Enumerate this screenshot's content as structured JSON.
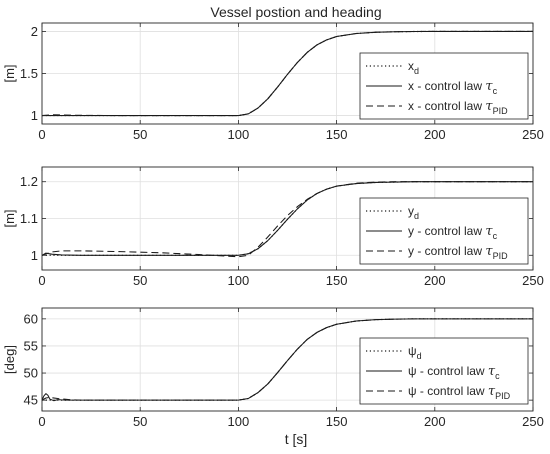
{
  "figure": {
    "title": "Vessel postion and heading",
    "xlabel": "t [s]"
  },
  "chart_data": [
    {
      "type": "line",
      "ylabel": "[m]",
      "xlim": [
        0,
        250
      ],
      "ylim": [
        0.9,
        2.1
      ],
      "xticks": [
        0,
        50,
        100,
        150,
        200,
        250
      ],
      "xtick_labels": [
        "0",
        "50",
        "100",
        "150",
        "200",
        "250"
      ],
      "yticks": [
        1,
        1.5,
        2
      ],
      "ytick_labels": [
        "1",
        "1.5",
        "2"
      ],
      "grid": true,
      "legend_position": "right",
      "series": [
        {
          "base": "x",
          "sub": "d",
          "suffix": "",
          "style": "dotted",
          "x": [
            0,
            100,
            105,
            110,
            115,
            120,
            125,
            130,
            135,
            140,
            145,
            150,
            160,
            170,
            180,
            190,
            200,
            225,
            250
          ],
          "y": [
            1.0,
            1.0,
            1.02,
            1.09,
            1.2,
            1.34,
            1.49,
            1.63,
            1.75,
            1.84,
            1.9,
            1.94,
            1.975,
            1.99,
            1.996,
            1.999,
            2.0,
            2.0,
            2.0
          ]
        },
        {
          "base": "x - control law ",
          "sub": "c",
          "suffix": "",
          "style": "solid",
          "x": [
            0,
            100,
            105,
            110,
            115,
            120,
            125,
            130,
            135,
            140,
            145,
            150,
            160,
            170,
            180,
            190,
            200,
            225,
            250
          ],
          "y": [
            1.0,
            1.0,
            1.02,
            1.09,
            1.2,
            1.34,
            1.49,
            1.63,
            1.75,
            1.84,
            1.9,
            1.94,
            1.975,
            1.99,
            1.996,
            1.999,
            2.0,
            2.0,
            2.0
          ]
        },
        {
          "base": "x - control law ",
          "sub": "PID",
          "suffix": "",
          "style": "dashed",
          "x": [
            0,
            5,
            10,
            20,
            40,
            60,
            80,
            100,
            105,
            110,
            115,
            120,
            125,
            130,
            135,
            140,
            145,
            150,
            160,
            170,
            180,
            190,
            200,
            225,
            250
          ],
          "y": [
            1.0,
            1.01,
            1.007,
            1.003,
            1.0,
            1.0,
            1.0,
            1.0,
            1.02,
            1.09,
            1.2,
            1.34,
            1.49,
            1.63,
            1.75,
            1.84,
            1.9,
            1.94,
            1.975,
            1.99,
            1.996,
            1.999,
            2.0,
            2.0,
            2.0
          ]
        }
      ]
    },
    {
      "type": "line",
      "ylabel": "[m]",
      "xlim": [
        0,
        250
      ],
      "ylim": [
        0.96,
        1.24
      ],
      "xticks": [
        0,
        50,
        100,
        150,
        200,
        250
      ],
      "xtick_labels": [
        "0",
        "50",
        "100",
        "150",
        "200",
        "250"
      ],
      "yticks": [
        1,
        1.1,
        1.2
      ],
      "ytick_labels": [
        "1",
        "1.1",
        "1.2"
      ],
      "grid": true,
      "legend_position": "right",
      "series": [
        {
          "base": "y",
          "sub": "d",
          "suffix": "",
          "style": "dotted",
          "x": [
            0,
            100,
            105,
            110,
            115,
            120,
            125,
            130,
            135,
            140,
            145,
            150,
            160,
            170,
            180,
            190,
            200,
            225,
            250
          ],
          "y": [
            1.0,
            1.0,
            1.004,
            1.018,
            1.04,
            1.068,
            1.098,
            1.126,
            1.15,
            1.168,
            1.18,
            1.188,
            1.195,
            1.198,
            1.199,
            1.2,
            1.2,
            1.2,
            1.2
          ]
        },
        {
          "base": "y - control law ",
          "sub": "c",
          "suffix": "",
          "style": "solid",
          "x": [
            0,
            2,
            5,
            10,
            20,
            60,
            100,
            105,
            110,
            115,
            120,
            125,
            130,
            135,
            140,
            145,
            150,
            160,
            170,
            180,
            190,
            200,
            225,
            250
          ],
          "y": [
            1.0,
            1.006,
            1.003,
            1.001,
            1.0,
            1.0,
            1.0,
            1.004,
            1.018,
            1.04,
            1.068,
            1.098,
            1.126,
            1.15,
            1.168,
            1.18,
            1.188,
            1.195,
            1.198,
            1.199,
            1.2,
            1.2,
            1.2,
            1.2
          ]
        },
        {
          "base": "y - control law ",
          "sub": "PID",
          "suffix": "",
          "style": "dashed",
          "x": [
            0,
            5,
            10,
            20,
            40,
            60,
            80,
            100,
            105,
            110,
            115,
            120,
            125,
            130,
            135,
            140,
            145,
            150,
            160,
            170,
            180,
            190,
            200,
            225,
            250
          ],
          "y": [
            1.0,
            1.009,
            1.012,
            1.012,
            1.01,
            1.007,
            1.002,
            0.996,
            1.0,
            1.022,
            1.05,
            1.08,
            1.108,
            1.132,
            1.152,
            1.168,
            1.18,
            1.188,
            1.196,
            1.199,
            1.2,
            1.2,
            1.2,
            1.2,
            1.2
          ]
        }
      ]
    },
    {
      "type": "line",
      "ylabel": "[deg]",
      "xlim": [
        0,
        250
      ],
      "ylim": [
        43,
        62
      ],
      "xticks": [
        0,
        50,
        100,
        150,
        200,
        250
      ],
      "xtick_labels": [
        "0",
        "50",
        "100",
        "150",
        "200",
        "250"
      ],
      "yticks": [
        45,
        50,
        55,
        60
      ],
      "ytick_labels": [
        "45",
        "50",
        "55",
        "60"
      ],
      "grid": true,
      "legend_position": "right",
      "series": [
        {
          "base": "ψ",
          "sub": "d",
          "suffix": "",
          "style": "dotted",
          "x": [
            0,
            100,
            105,
            110,
            115,
            120,
            125,
            130,
            135,
            140,
            145,
            150,
            160,
            170,
            180,
            190,
            200,
            225,
            250
          ],
          "y": [
            45,
            45,
            45.3,
            46.4,
            48.0,
            50.1,
            52.3,
            54.4,
            56.2,
            57.5,
            58.4,
            59.0,
            59.6,
            59.85,
            59.95,
            60,
            60,
            60,
            60
          ]
        },
        {
          "base": "ψ - control law ",
          "sub": "c",
          "suffix": "",
          "style": "solid",
          "x": [
            0,
            1,
            2,
            3,
            4,
            6,
            8,
            12,
            20,
            100,
            105,
            110,
            115,
            120,
            125,
            130,
            135,
            140,
            145,
            150,
            160,
            170,
            180,
            190,
            200,
            225,
            250
          ],
          "y": [
            45,
            45.8,
            46.2,
            45.9,
            45.2,
            44.9,
            45.1,
            45,
            45,
            45,
            45.3,
            46.4,
            48.0,
            50.1,
            52.3,
            54.4,
            56.2,
            57.5,
            58.4,
            59.0,
            59.6,
            59.85,
            59.95,
            60,
            60,
            60,
            60
          ]
        },
        {
          "base": "ψ - control law ",
          "sub": "PID",
          "suffix": "",
          "style": "dashed",
          "x": [
            0,
            2,
            4,
            8,
            14,
            20,
            100,
            105,
            110,
            115,
            120,
            125,
            130,
            135,
            140,
            145,
            150,
            160,
            170,
            180,
            190,
            200,
            225,
            250
          ],
          "y": [
            45,
            45.4,
            45.5,
            45.3,
            45.1,
            45,
            45,
            45.3,
            46.4,
            48.0,
            50.1,
            52.3,
            54.4,
            56.2,
            57.5,
            58.4,
            59.0,
            59.6,
            59.85,
            59.95,
            60,
            60,
            60,
            60
          ]
        }
      ]
    }
  ]
}
